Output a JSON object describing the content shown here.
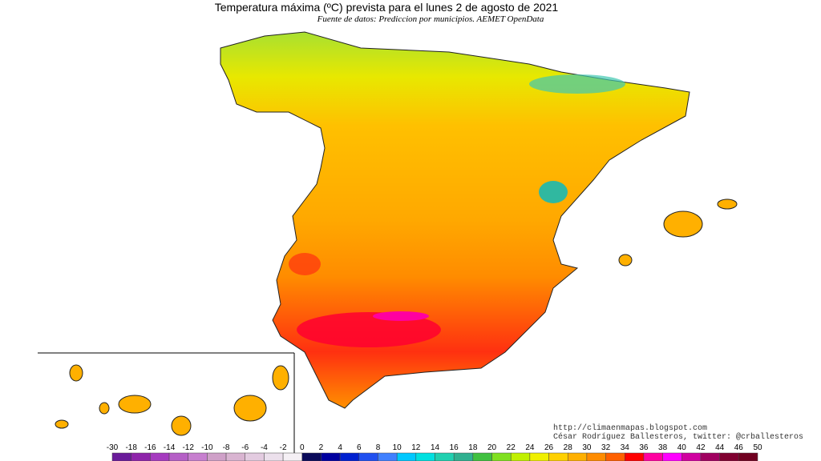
{
  "header": {
    "title": "Temperatura máxima (ºC) prevista para el lunes 2 de agosto de 2021",
    "subtitle": "Fuente de datos: Prediccion por municipios. AEMET OpenData"
  },
  "credits": [
    "http://climaenmapas.blogspot.com",
    "César Rodríguez Ballesteros, twitter: @crballesteros"
  ],
  "legend": {
    "ticks": [
      -30,
      -18,
      -16,
      -14,
      -12,
      -10,
      -8,
      -6,
      -4,
      -2,
      0,
      2,
      4,
      6,
      8,
      10,
      12,
      14,
      16,
      18,
      20,
      22,
      24,
      26,
      28,
      30,
      32,
      34,
      36,
      38,
      40,
      42,
      44,
      46,
      50
    ],
    "colors": [
      "#6a1b9a",
      "#8e24aa",
      "#a53bbf",
      "#b55fc6",
      "#c77fcf",
      "#cfa0c8",
      "#d9b4d1",
      "#e3cbe0",
      "#ece0ec",
      "#f5f0f5",
      "#0a0a5a",
      "#0000a0",
      "#0020d0",
      "#2050f0",
      "#4080ff",
      "#00c8ff",
      "#00e0e0",
      "#20d0b0",
      "#30b090",
      "#40c040",
      "#80e020",
      "#c0f000",
      "#f0f000",
      "#ffd000",
      "#ffb000",
      "#ff8c00",
      "#ff6000",
      "#ff0000",
      "#ff00a0",
      "#ff00ff",
      "#d000a0",
      "#a00060",
      "#800030",
      "#700020"
    ]
  }
}
